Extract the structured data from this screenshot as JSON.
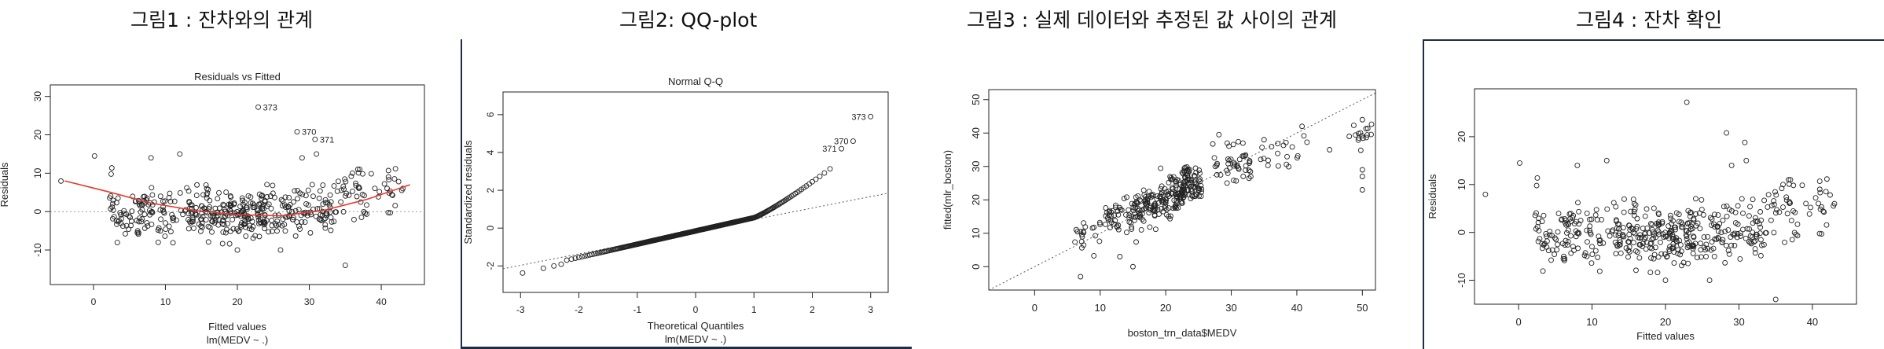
{
  "headings": {
    "fig1": "그림1 : 잔차와의 관계",
    "fig2": "그림2: QQ-plot",
    "fig3": "그림3 : 실제 데이터와 추정된 값 사이의 관계",
    "fig4": "그림4 : 잔차 확인"
  },
  "chart_data": [
    {
      "type": "scatter",
      "title": "Residuals vs Fitted",
      "xlabel": "Fitted values",
      "sublabel": "lm(MEDV ~ .)",
      "ylabel": "Residuals",
      "xlim": [
        -6,
        46
      ],
      "ylim": [
        -19,
        33
      ],
      "xticks": [
        0,
        10,
        20,
        30,
        40
      ],
      "yticks": [
        -10,
        0,
        10,
        20,
        30
      ],
      "refline_y": 0,
      "smooth": [
        [
          -4,
          8
        ],
        [
          2,
          5.2
        ],
        [
          8,
          2.2
        ],
        [
          14,
          0.3
        ],
        [
          20,
          -0.8
        ],
        [
          26,
          -1.1
        ],
        [
          32,
          0.3
        ],
        [
          38,
          3.2
        ],
        [
          44,
          7
        ]
      ],
      "labeled_points": [
        {
          "x": 22.9,
          "y": 27.2,
          "label": "373"
        },
        {
          "x": 28.3,
          "y": 20.8,
          "label": "370"
        },
        {
          "x": 30.8,
          "y": 18.8,
          "label": "371"
        }
      ],
      "clusters": [
        [
          -4,
          11,
          1,
          1
        ],
        [
          1,
          13,
          1,
          1
        ],
        [
          6,
          0,
          4,
          60
        ],
        [
          12,
          0,
          6,
          85
        ],
        [
          18,
          -1,
          5,
          95
        ],
        [
          23,
          -1,
          5,
          85
        ],
        [
          28,
          0,
          5,
          65
        ],
        [
          33,
          2,
          5,
          45
        ],
        [
          38,
          7,
          4,
          25
        ],
        [
          42,
          7,
          2,
          8
        ]
      ],
      "extra_points": [
        [
          35,
          -14
        ],
        [
          8,
          14
        ],
        [
          12,
          15
        ],
        [
          31,
          15
        ],
        [
          36,
          10
        ],
        [
          37,
          11
        ],
        [
          20,
          -10
        ],
        [
          26,
          -10
        ],
        [
          41,
          9
        ],
        [
          43,
          6
        ],
        [
          29,
          14
        ],
        [
          9,
          -8
        ]
      ]
    },
    {
      "type": "scatter",
      "title": "Normal Q-Q",
      "xlabel": "Theoretical Quantiles",
      "sublabel": "lm(MEDV ~ .)",
      "ylabel": "Standardized residuals",
      "xlim": [
        -3.3,
        3.3
      ],
      "ylim": [
        -3.4,
        7.2
      ],
      "xticks": [
        -3,
        -2,
        -1,
        0,
        1,
        2,
        3
      ],
      "yticks": [
        -2,
        0,
        2,
        4,
        6
      ],
      "refline": [
        [
          -3.3,
          -2.15
        ],
        [
          3.3,
          1.85
        ]
      ],
      "labeled_points": [
        {
          "x": 3.0,
          "y": 5.9,
          "label": "373"
        },
        {
          "x": 2.7,
          "y": 4.6,
          "label": "370"
        },
        {
          "x": 2.5,
          "y": 4.2,
          "label": "371"
        }
      ]
    },
    {
      "type": "scatter",
      "title": "",
      "xlabel": "boston_trn_data$MEDV",
      "ylabel": "fitted(mlr_boston)",
      "xlim": [
        -7,
        52
      ],
      "ylim": [
        -7,
        53
      ],
      "xticks": [
        0,
        10,
        20,
        30,
        40,
        50
      ],
      "yticks": [
        0,
        10,
        20,
        30,
        40,
        50
      ],
      "refline": [
        [
          -7,
          -7
        ],
        [
          52,
          52
        ]
      ],
      "clusters": [
        [
          8,
          9,
          2,
          20
        ],
        [
          13,
          14,
          2.5,
          45
        ],
        [
          17,
          18,
          2,
          70
        ],
        [
          21,
          21,
          2,
          90
        ],
        [
          24,
          25,
          1.5,
          70
        ],
        [
          30,
          31,
          3,
          45
        ],
        [
          38,
          35,
          4,
          20
        ],
        [
          50,
          38,
          1.5,
          15
        ]
      ],
      "extra_points": [
        [
          7,
          -3
        ],
        [
          15,
          0
        ],
        [
          50,
          23
        ],
        [
          50,
          27
        ],
        [
          50,
          29
        ],
        [
          50,
          44
        ],
        [
          45,
          35
        ],
        [
          48,
          39
        ],
        [
          35,
          38
        ],
        [
          13,
          3
        ]
      ]
    },
    {
      "type": "scatter",
      "title": "",
      "xlabel": "Fitted values",
      "ylabel": "Residuals",
      "xlim": [
        -6,
        46
      ],
      "ylim": [
        -15,
        30
      ],
      "xticks": [
        0,
        10,
        20,
        30,
        40
      ],
      "yticks": [
        -10,
        0,
        10,
        20
      ],
      "clusters": [
        [
          -4,
          11,
          1,
          1
        ],
        [
          1,
          13,
          1,
          1
        ],
        [
          6,
          0,
          4,
          60
        ],
        [
          12,
          0,
          6,
          85
        ],
        [
          18,
          -1,
          5,
          95
        ],
        [
          23,
          -1,
          5,
          85
        ],
        [
          28,
          0,
          5,
          65
        ],
        [
          33,
          2,
          5,
          45
        ],
        [
          38,
          7,
          4,
          25
        ],
        [
          42,
          7,
          2,
          8
        ]
      ],
      "extra_points": [
        [
          22.9,
          27.2
        ],
        [
          28.3,
          20.8
        ],
        [
          30.8,
          18.8
        ],
        [
          35,
          -14
        ],
        [
          8,
          14
        ],
        [
          12,
          15
        ],
        [
          31,
          15
        ],
        [
          36,
          10
        ],
        [
          37,
          11
        ],
        [
          20,
          -10
        ],
        [
          26,
          -10
        ],
        [
          41,
          9
        ],
        [
          43,
          6
        ],
        [
          29,
          14
        ]
      ]
    }
  ]
}
